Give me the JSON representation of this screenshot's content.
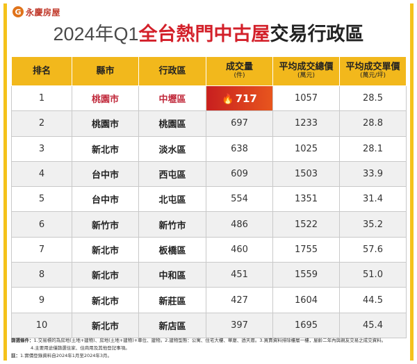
{
  "brand": {
    "logo_mark": "G",
    "name": "永慶房屋"
  },
  "title": {
    "part1": "2024年Q1",
    "part2": "全台熱門中古屋",
    "part3": "交易行政區"
  },
  "table": {
    "headers": {
      "rank": "排名",
      "county": "縣市",
      "district": "行政區",
      "volume": "成交量",
      "volume_unit": "(件)",
      "avg_total": "平均成交總價",
      "avg_total_unit": "(萬元)",
      "avg_unit": "平均成交單價",
      "avg_unit_unit": "(萬元/坪)"
    },
    "rows": [
      {
        "rank": "1",
        "county": "桃園市",
        "district": "中壢區",
        "volume": "717",
        "avg_total": "1057",
        "avg_unit": "28.5"
      },
      {
        "rank": "2",
        "county": "桃園市",
        "district": "桃園區",
        "volume": "697",
        "avg_total": "1233",
        "avg_unit": "28.8"
      },
      {
        "rank": "3",
        "county": "新北市",
        "district": "淡水區",
        "volume": "638",
        "avg_total": "1025",
        "avg_unit": "28.1"
      },
      {
        "rank": "4",
        "county": "台中市",
        "district": "西屯區",
        "volume": "609",
        "avg_total": "1503",
        "avg_unit": "33.9"
      },
      {
        "rank": "5",
        "county": "台中市",
        "district": "北屯區",
        "volume": "554",
        "avg_total": "1351",
        "avg_unit": "31.4"
      },
      {
        "rank": "6",
        "county": "新竹市",
        "district": "新竹市",
        "volume": "486",
        "avg_total": "1522",
        "avg_unit": "35.2"
      },
      {
        "rank": "7",
        "county": "新北市",
        "district": "板橋區",
        "volume": "460",
        "avg_total": "1755",
        "avg_unit": "57.6"
      },
      {
        "rank": "8",
        "county": "新北市",
        "district": "中和區",
        "volume": "451",
        "avg_total": "1559",
        "avg_unit": "51.0"
      },
      {
        "rank": "9",
        "county": "新北市",
        "district": "新莊區",
        "volume": "427",
        "avg_total": "1604",
        "avg_unit": "44.5"
      },
      {
        "rank": "10",
        "county": "新北市",
        "district": "新店區",
        "volume": "397",
        "avg_total": "1695",
        "avg_unit": "45.4"
      }
    ]
  },
  "notes": {
    "line1_label": "篩選條件：",
    "line1_text": "1.交易標的為房地(土地+建物)、房地(土地+建物)+車位、建物。2.建物型態：公寓、住宅大樓、華廈、透天厝。3.買賣資料排除樓層一樓，屋齡二年內與親友交易之成交資料。",
    "line2_text": "4.主要用途僅篩選住家、住商用及其他登記事項。",
    "line3_label": "註：",
    "line3_text": "1.實價登錄資料自2024年1月至2024年3月。"
  },
  "colors": {
    "accent_yellow": "#f2b81c",
    "title_red": "#d3202a",
    "highlight_red": "#c81f1f"
  },
  "icons": {
    "hot_cell": "flame-icon"
  }
}
